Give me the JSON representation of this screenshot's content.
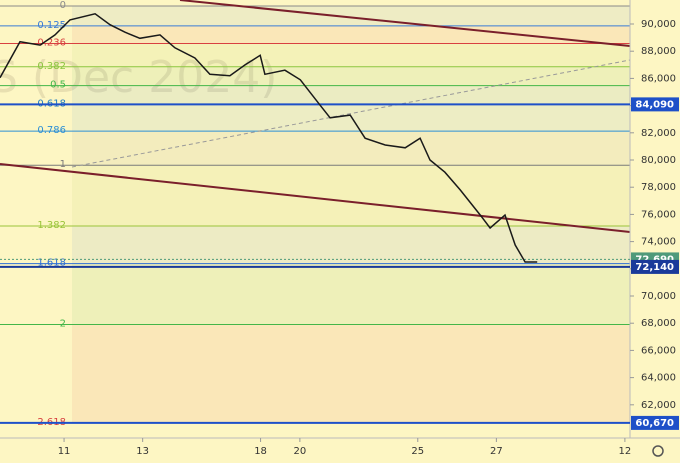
{
  "chart_data": {
    "type": "line",
    "watermark": "S (Dec 2024)",
    "color": "#1a1a1a",
    "x": [
      -1.63,
      -1.12,
      -0.61,
      -0.23,
      0.15,
      0.79,
      1.17,
      1.55,
      1.93,
      2.44,
      2.82,
      3.33,
      3.71,
      4.22,
      4.61,
      4.99,
      5.11,
      5.62,
      6.01,
      6.51,
      6.77,
      7.28,
      7.66,
      8.17,
      8.68,
      9.06,
      9.31,
      9.69,
      10.08,
      10.59,
      10.84,
      11.22,
      11.48,
      11.73,
      12.04
    ],
    "values": [
      86050,
      88700,
      88450,
      89200,
      90300,
      90750,
      89950,
      89400,
      88950,
      89200,
      88250,
      87500,
      86300,
      86200,
      87000,
      87700,
      86300,
      86600,
      85900,
      84050,
      83100,
      83300,
      81600,
      81100,
      80900,
      81600,
      80000,
      79100,
      77800,
      75950,
      75000,
      75950,
      73750,
      72500,
      72500
    ],
    "xlim": [
      -1.63,
      14.4
    ],
    "xticks": [
      {
        "value": 0,
        "label": "11"
      },
      {
        "value": 2,
        "label": "13"
      },
      {
        "value": 5,
        "label": "18"
      },
      {
        "value": 6,
        "label": "20"
      },
      {
        "value": 9,
        "label": "25"
      },
      {
        "value": 11,
        "label": "27"
      },
      {
        "value": 14.27,
        "label": "12"
      }
    ],
    "ylim": [
      59560,
      91765
    ],
    "yticks": [
      {
        "value": 62000,
        "label": "62,000"
      },
      {
        "value": 64000,
        "label": "64,000"
      },
      {
        "value": 66000,
        "label": "66,000"
      },
      {
        "value": 68000,
        "label": "68,000"
      },
      {
        "value": 70000,
        "label": "70,000"
      },
      {
        "value": 72000,
        "label": "72,000"
      },
      {
        "value": 74000,
        "label": "74,000"
      },
      {
        "value": 76000,
        "label": "76,000"
      },
      {
        "value": 78000,
        "label": "78,000"
      },
      {
        "value": 80000,
        "label": "80,000"
      },
      {
        "value": 82000,
        "label": "82,000"
      },
      {
        "value": 84000,
        "label": "84,000"
      },
      {
        "value": 86000,
        "label": "86,000"
      },
      {
        "value": 88000,
        "label": "88,000"
      },
      {
        "value": 90000,
        "label": "90,000"
      }
    ],
    "fib_levels": [
      {
        "ratio": "0",
        "value": 91327,
        "color": "#8a8a8a"
      },
      {
        "ratio": "0.125",
        "value": 89863,
        "color": "#3a7bd5"
      },
      {
        "ratio": "0.236",
        "value": 88563,
        "color": "#d84040"
      },
      {
        "ratio": "0.382",
        "value": 86854,
        "color": "#8cc63f"
      },
      {
        "ratio": "0.5",
        "value": 85472,
        "color": "#43b649"
      },
      {
        "ratio": "0.618",
        "value": 84090,
        "color": "#1f7bbf"
      },
      {
        "ratio": "0.786",
        "value": 82123,
        "color": "#2d8fd5"
      },
      {
        "ratio": "1",
        "value": 79617,
        "color": "#7a7a7a"
      },
      {
        "ratio": "1.382",
        "value": 75144,
        "color": "#9ac43a"
      },
      {
        "ratio": "1.618",
        "value": 72380,
        "color": "#2d6fd5"
      },
      {
        "ratio": "2",
        "value": 67907,
        "color": "#43b649"
      },
      {
        "ratio": "2.618",
        "value": 60670,
        "color": "#d84040"
      }
    ],
    "price_labels": [
      {
        "value": 84090,
        "label": "84,090",
        "color": "#1e50c8"
      },
      {
        "value": 72690,
        "label": "72,690",
        "color": "#4f9a7a"
      },
      {
        "value": 72140,
        "label": "72,140",
        "color": "#1a3a9a"
      },
      {
        "value": 60670,
        "label": "60,670",
        "color": "#1e50c8"
      }
    ]
  }
}
